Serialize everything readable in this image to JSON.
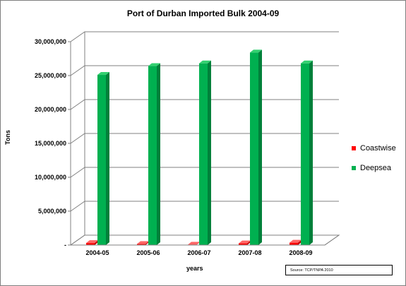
{
  "chart_data": {
    "type": "bar",
    "title": "Port of Durban Imported Bulk  2004-09",
    "xlabel": "years",
    "ylabel": "Tons",
    "categories": [
      "2004-05",
      "2005-06",
      "2006-07",
      "2007-08",
      "2008-09"
    ],
    "series": [
      {
        "name": "Coastwise",
        "values": [
          300000,
          150000,
          50000,
          250000,
          350000
        ],
        "color": "#ff0000"
      },
      {
        "name": "Deepsea",
        "values": [
          25100000,
          26400000,
          26800000,
          28400000,
          26800000
        ],
        "color": "#00b050"
      }
    ],
    "yticks": [
      "-",
      "5,000,000",
      "10,000,000",
      "15,000,000",
      "20,000,000",
      "25,000,000",
      "30,000,000"
    ],
    "ylim": [
      0,
      30000000
    ],
    "grid": true,
    "legend_position": "right",
    "source": "Source: TCP/TNPA 2010"
  }
}
